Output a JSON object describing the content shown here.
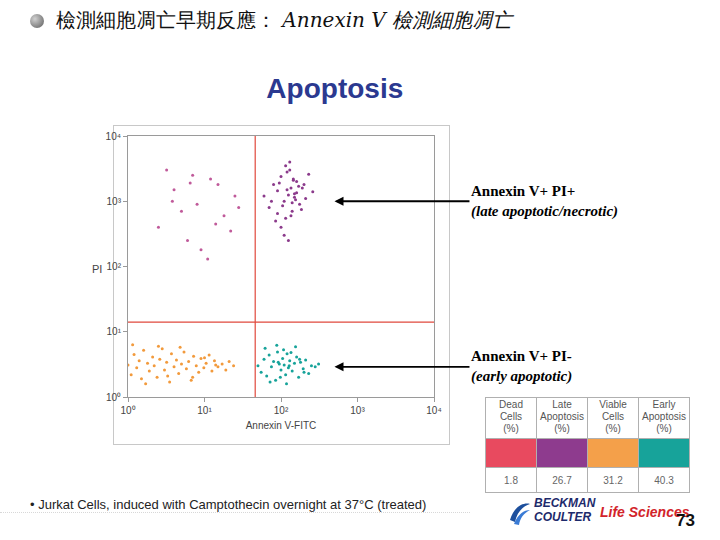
{
  "header": {
    "lead": "檢測細胞凋亡早期反應： ",
    "emphasis": "Annexin V 檢測細胞凋亡"
  },
  "chart_data": {
    "type": "scatter",
    "title": "Apoptosis",
    "x_label": "Annexin V-FITC",
    "y_label": "PI",
    "log": true,
    "grid": false,
    "marker": "circle",
    "xlim": [
      1,
      10000
    ],
    "ylim": [
      1,
      10000
    ],
    "xticks": [
      {
        "value": 1,
        "label": "10⁰"
      },
      {
        "value": 10,
        "label": "10¹"
      },
      {
        "value": 100,
        "label": "10²"
      },
      {
        "value": 1000,
        "label": "10³"
      },
      {
        "value": 10000,
        "label": "10⁴"
      }
    ],
    "yticks": [
      {
        "value": 1,
        "label": "10⁰"
      },
      {
        "value": 10,
        "label": "10¹"
      },
      {
        "value": 100,
        "label": "10²"
      },
      {
        "value": 1000,
        "label": "10³"
      },
      {
        "value": 10000,
        "label": "10⁴"
      }
    ],
    "gates": {
      "x": 46,
      "y": 14,
      "color": "#e0483c"
    },
    "series": [
      {
        "color": "#f29a3c",
        "x": [
          1.0,
          1.1,
          1.2,
          1.3,
          1.4,
          1.5,
          1.6,
          1.8,
          1.9,
          2.1,
          2.2,
          2.4,
          2.6,
          2.8,
          3.0,
          3.2,
          3.5,
          3.7,
          4.0,
          4.3,
          4.6,
          5.0,
          5.4,
          5.8,
          6.2,
          6.7,
          7.2,
          7.8,
          8.4,
          9.0,
          9.8,
          10.5,
          11.5,
          12.5,
          13.5,
          15,
          17,
          19,
          21,
          24,
          1.15,
          1.7,
          2.5,
          3.3,
          4.8,
          7.0,
          10,
          14
        ],
        "y": [
          3.1,
          2.2,
          4.5,
          2.8,
          3.6,
          1.9,
          5.2,
          3.3,
          2.5,
          4.1,
          3.0,
          2.0,
          3.8,
          5.5,
          2.6,
          3.4,
          1.7,
          4.6,
          2.9,
          3.7,
          2.3,
          3.2,
          4.9,
          2.7,
          3.5,
          1.8,
          4.2,
          3.0,
          2.4,
          3.9,
          2.8,
          3.3,
          4.4,
          2.5,
          3.6,
          2.9,
          3.2,
          2.6,
          3.5,
          3.0,
          6.3,
          1.6,
          6.0,
          2.1,
          5.8,
          2.0,
          4.0,
          3.1
        ]
      },
      {
        "color": "#17a39a",
        "x": [
          50,
          55,
          60,
          65,
          70,
          75,
          80,
          85,
          90,
          95,
          100,
          105,
          110,
          115,
          120,
          125,
          130,
          140,
          150,
          160,
          170,
          180,
          195,
          210,
          230,
          250,
          280,
          310,
          62,
          72,
          88,
          98,
          108,
          118,
          135,
          155,
          175,
          200,
          92,
          128
        ],
        "y": [
          3.0,
          2.4,
          3.8,
          2.1,
          4.4,
          2.9,
          3.5,
          1.8,
          4.9,
          3.2,
          2.6,
          3.9,
          3.1,
          2.2,
          4.6,
          2.8,
          3.6,
          2.5,
          3.3,
          4.1,
          2.0,
          3.4,
          2.7,
          3.7,
          2.3,
          3.0,
          2.9,
          3.2,
          5.6,
          1.7,
          6.2,
          2.0,
          5.3,
          1.6,
          4.8,
          5.9,
          3.8,
          2.4,
          3.4,
          3.0
        ]
      },
      {
        "color": "#8b3a8b",
        "x": [
          60,
          70,
          80,
          90,
          100,
          110,
          120,
          130,
          140,
          150,
          160,
          175,
          190,
          210,
          230,
          260,
          85,
          95,
          105,
          115,
          125,
          135,
          145,
          155,
          170,
          185,
          100,
          120,
          140,
          160,
          110,
          130,
          150,
          90,
          125,
          200,
          75,
          145,
          115,
          135
        ],
        "y": [
          1200,
          800,
          1800,
          650,
          2400,
          1000,
          1500,
          3000,
          700,
          1300,
          2000,
          900,
          1600,
          1100,
          2600,
          1400,
          500,
          1900,
          850,
          3500,
          1250,
          600,
          2200,
          1050,
          1700,
          750,
          400,
          2800,
          950,
          1350,
          300,
          4000,
          1150,
          1450,
          250,
          1800,
          1000,
          2100,
          550,
          1600
        ]
      },
      {
        "color": "#c05a9a",
        "x": [
          2.5,
          4,
          6,
          8,
          12,
          18,
          25,
          3.2,
          5,
          9,
          15,
          22,
          7,
          11,
          3.8,
          28,
          14,
          6.5
        ],
        "y": [
          400,
          1500,
          250,
          900,
          2200,
          600,
          1200,
          3000,
          700,
          180,
          1800,
          350,
          2500,
          130,
          1000,
          800,
          450,
          1900
        ]
      }
    ],
    "annotations": [
      {
        "lines": [
          "Annexin V+ PI+",
          "(late apoptotic/necrotic)"
        ],
        "x": 500,
        "y": 1000
      },
      {
        "lines": [
          "Annexin V+ PI-",
          "(early apoptotic)"
        ],
        "x": 500,
        "y": 2.9
      }
    ]
  },
  "table": {
    "header": [
      [
        "Dead",
        "Cells",
        "(%)"
      ],
      [
        "Late",
        "Apoptosis",
        "(%)"
      ],
      [
        "Viable",
        "Cells",
        "(%)"
      ],
      [
        "Early",
        "Apoptosis",
        "(%)"
      ]
    ],
    "colors": [
      "#e84a5f",
      "#8e3b8e",
      "#f4a04a",
      "#17a39a"
    ],
    "values": [
      1.8,
      26.7,
      31.2,
      40.3
    ]
  },
  "footnote": "• Jurkat Cells, induced with Camptothecin overnight at 37°C (treated)",
  "logo": {
    "lines": [
      "BECKMAN",
      "COULTER"
    ],
    "tagline": "Life Sciences"
  },
  "page_number": 73
}
